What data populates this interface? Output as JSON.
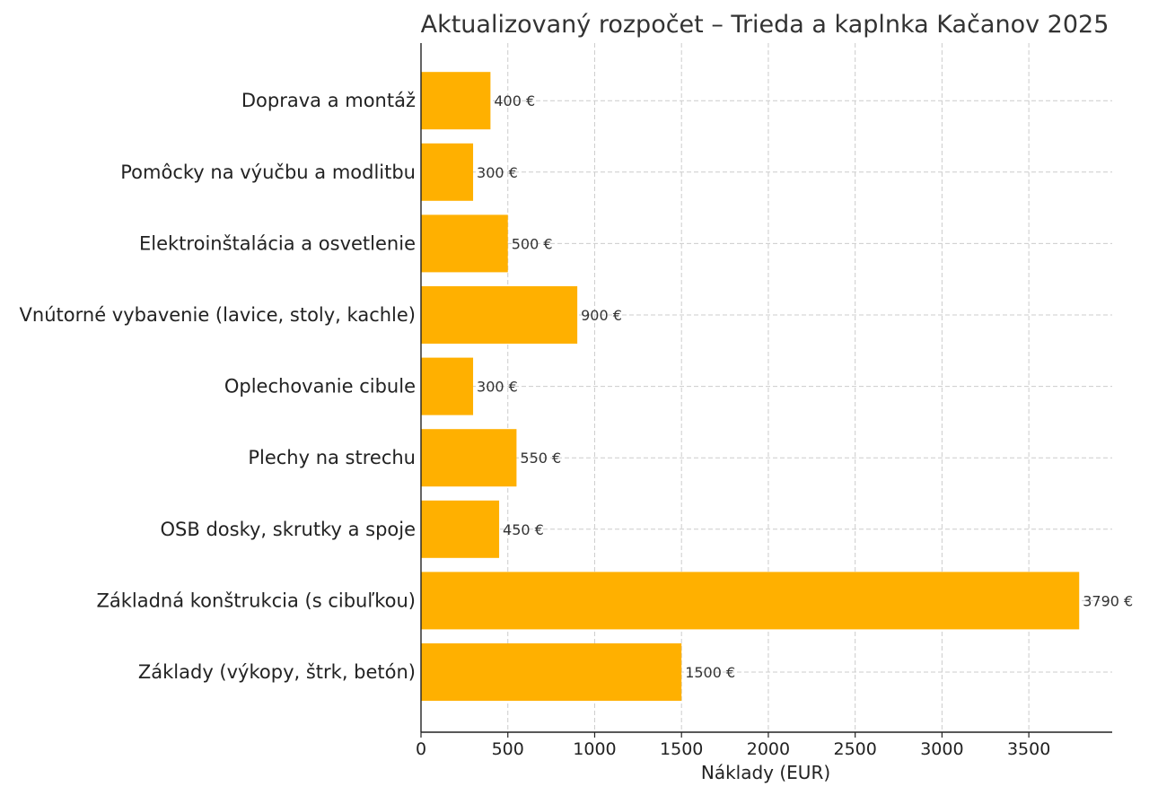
{
  "chart_data": {
    "type": "bar",
    "orientation": "horizontal",
    "title": "Aktualizovaný rozpočet – Trieda a kaplnka Kačanov 2025",
    "xlabel": "Náklady (EUR)",
    "ylabel": "",
    "xlim": [
      0,
      3980
    ],
    "xticks": [
      0,
      500,
      1000,
      1500,
      2000,
      2500,
      3000,
      3500
    ],
    "grid": true,
    "bar_color": "#FFB000",
    "label_suffix": " €",
    "categories": [
      "Základy (výkopy, štrk, betón)",
      "Základná konštrukcia (s cibuľkou)",
      "OSB dosky, skrutky a spoje",
      "Plechy na strechu",
      "Oplechovanie cibule",
      "Vnútorné vybavenie (lavice, stoly, kachle)",
      "Elektroinštalácia a osvetlenie",
      "Pomôcky na výučbu a modlitbu",
      "Doprava a montáž"
    ],
    "values": [
      1500,
      3790,
      450,
      550,
      300,
      900,
      500,
      300,
      400
    ],
    "data_labels": [
      "1500 €",
      "3790 €",
      "450 €",
      "550 €",
      "300 €",
      "900 €",
      "500 €",
      "300 €",
      "400 €"
    ]
  }
}
